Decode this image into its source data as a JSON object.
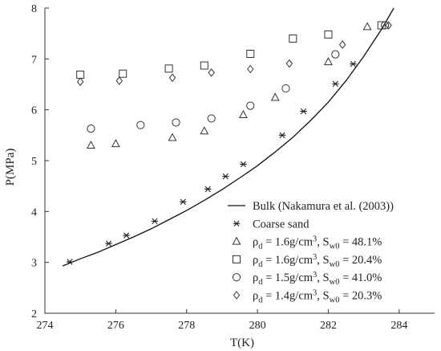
{
  "chart_data": {
    "type": "scatter",
    "title": "",
    "xlabel": "T(K)",
    "ylabel": "P(MPa)",
    "xlim": [
      274,
      285
    ],
    "ylim": [
      2,
      8
    ],
    "x_ticks": [
      274,
      276,
      278,
      280,
      282,
      284
    ],
    "y_ticks": [
      2,
      3,
      4,
      5,
      6,
      7,
      8
    ],
    "grid": false,
    "legend_position": "bottom-right",
    "series": [
      {
        "name": "Bulk (Nakamura et al. (2003))",
        "kind": "line",
        "marker": "none",
        "points": [
          [
            274.5,
            2.93
          ],
          [
            275.0,
            3.07
          ],
          [
            275.5,
            3.2
          ],
          [
            276.0,
            3.35
          ],
          [
            276.5,
            3.5
          ],
          [
            277.0,
            3.66
          ],
          [
            277.5,
            3.84
          ],
          [
            278.0,
            4.02
          ],
          [
            278.5,
            4.22
          ],
          [
            279.0,
            4.43
          ],
          [
            279.5,
            4.66
          ],
          [
            280.0,
            4.9
          ],
          [
            280.5,
            5.17
          ],
          [
            281.0,
            5.46
          ],
          [
            281.5,
            5.79
          ],
          [
            282.0,
            6.15
          ],
          [
            282.5,
            6.57
          ],
          [
            283.0,
            7.05
          ],
          [
            283.5,
            7.58
          ],
          [
            283.85,
            8.0
          ]
        ]
      },
      {
        "name": "Coarse sand",
        "kind": "scatter",
        "marker": "star",
        "points": [
          [
            274.7,
            3.01
          ],
          [
            275.8,
            3.37
          ],
          [
            276.3,
            3.53
          ],
          [
            277.1,
            3.81
          ],
          [
            277.9,
            4.19
          ],
          [
            278.6,
            4.44
          ],
          [
            279.1,
            4.69
          ],
          [
            279.6,
            4.93
          ],
          [
            280.7,
            5.5
          ],
          [
            281.3,
            5.97
          ],
          [
            282.2,
            6.51
          ],
          [
            282.7,
            6.9
          ]
        ]
      },
      {
        "name": "ρd = 1.6g/cm3, Sw0 = 48.1%",
        "kind": "scatter",
        "marker": "triangle",
        "points": [
          [
            275.3,
            5.3
          ],
          [
            276.0,
            5.33
          ],
          [
            277.6,
            5.45
          ],
          [
            278.5,
            5.58
          ],
          [
            279.6,
            5.9
          ],
          [
            280.5,
            6.24
          ],
          [
            282.0,
            6.94
          ],
          [
            283.1,
            7.63
          ]
        ]
      },
      {
        "name": "ρd = 1.6g/cm3, Sw0 = 20.4%",
        "kind": "scatter",
        "marker": "square",
        "points": [
          [
            275.0,
            6.69
          ],
          [
            276.2,
            6.71
          ],
          [
            277.5,
            6.81
          ],
          [
            278.5,
            6.87
          ],
          [
            279.8,
            7.1
          ],
          [
            281.0,
            7.4
          ],
          [
            282.0,
            7.48
          ],
          [
            283.5,
            7.66
          ]
        ]
      },
      {
        "name": "ρd = 1.5g/cm3, Sw0 = 41.0%",
        "kind": "scatter",
        "marker": "circle",
        "points": [
          [
            275.3,
            5.63
          ],
          [
            276.7,
            5.7
          ],
          [
            277.7,
            5.75
          ],
          [
            278.7,
            5.83
          ],
          [
            279.8,
            6.08
          ],
          [
            280.8,
            6.42
          ],
          [
            282.2,
            7.09
          ],
          [
            283.6,
            7.66
          ]
        ]
      },
      {
        "name": "ρd = 1.4g/cm3, Sw0 = 20.3%",
        "kind": "scatter",
        "marker": "diamond",
        "points": [
          [
            275.0,
            6.55
          ],
          [
            276.1,
            6.57
          ],
          [
            277.6,
            6.63
          ],
          [
            278.7,
            6.73
          ],
          [
            279.8,
            6.8
          ],
          [
            280.9,
            6.91
          ],
          [
            282.4,
            7.28
          ],
          [
            283.7,
            7.66
          ]
        ]
      }
    ],
    "legend": [
      {
        "parts": [
          "Bulk (Nakamura et al. (2003))"
        ]
      },
      {
        "parts": [
          "Coarse sand"
        ]
      },
      {
        "parts": [
          "ρ",
          "d",
          " = 1.6g/cm",
          "3",
          ", S",
          "w0",
          " = 48.1%"
        ]
      },
      {
        "parts": [
          "ρ",
          "d",
          " = 1.6g/cm",
          "3",
          ", S",
          "w0",
          " = 20.4%"
        ]
      },
      {
        "parts": [
          "ρ",
          "d",
          " = 1.5g/cm",
          "3",
          ", S",
          "w0",
          " = 41.0%"
        ]
      },
      {
        "parts": [
          "ρ",
          "d",
          " = 1.4g/cm",
          "3",
          ", S",
          "w0",
          " = 20.3%"
        ]
      }
    ]
  }
}
